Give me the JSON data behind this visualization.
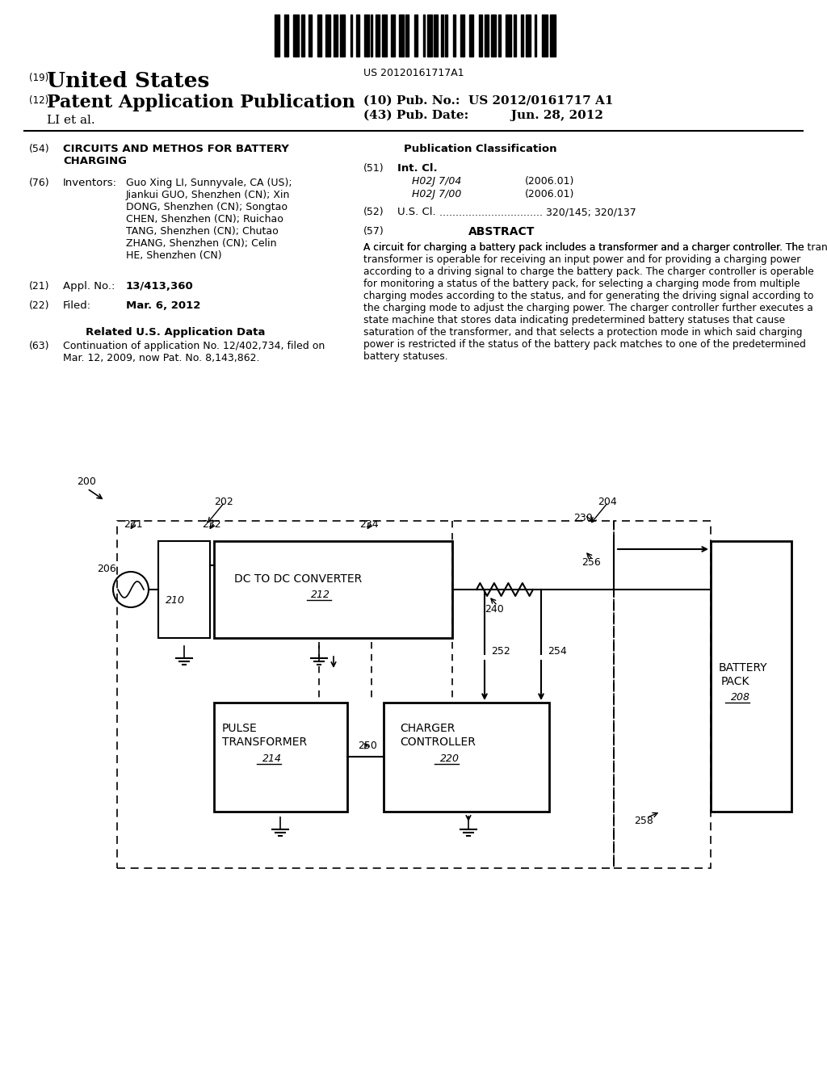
{
  "background_color": "#ffffff",
  "barcode_text": "US 20120161717A1",
  "header_19": "(19)",
  "header_us": "United States",
  "header_12": "(12)",
  "header_pat": "Patent Application Publication",
  "header_li": "LI et al.",
  "header_10": "(10) Pub. No.:  US 2012/0161717 A1",
  "header_43": "(43) Pub. Date:          Jun. 28, 2012",
  "field_54_label": "(54)",
  "field_54_title": "CIRCUITS AND METHOS FOR BATTERY\nCHARGING",
  "field_76_label": "(76)",
  "field_76_title": "Inventors:",
  "field_76_text": "Guo Xing LI, Sunnyvale, CA (US);\nJiankui GUO, Shenzhen (CN); Xin\nDONG, Shenzhen (CN); Songtao\nCHEN, Shenzhen (CN); Ruichao\nTANG, Shenzhen (CN); Chutao\nZHANG, Shenzhen (CN); Celin\nHE, Shenzhen (CN)",
  "field_21_label": "(21)",
  "field_21_title": "Appl. No.:",
  "field_21_text": "13/413,360",
  "field_22_label": "(22)",
  "field_22_title": "Filed:",
  "field_22_text": "Mar. 6, 2012",
  "related_title": "Related U.S. Application Data",
  "field_63_label": "(63)",
  "field_63_text": "Continuation of application No. 12/402,734, filed on\nMar. 12, 2009, now Pat. No. 8,143,862.",
  "pub_class_title": "Publication Classification",
  "field_51_label": "(51)",
  "field_51_title": "Int. Cl.",
  "field_51_class1": "H02J 7/04",
  "field_51_year1": "(2006.01)",
  "field_51_class2": "H02J 7/00",
  "field_51_year2": "(2006.01)",
  "field_52_label": "(52)",
  "field_52_title": "U.S. Cl.",
  "field_52_text": "320/145; 320/137",
  "field_57_label": "(57)",
  "field_57_title": "ABSTRACT",
  "abstract_text": "A circuit for charging a battery pack includes a transformer and a charger controller. The transformer is operable for receiving an input power and for providing a charging power according to a driving signal to charge the battery pack. The charger controller is operable for monitoring a status of the battery pack, for selecting a charging mode from multiple charging modes according to the status, and for generating the driving signal according to the charging mode to adjust the charging power. The charger controller further executes a state machine that stores data indicating predetermined battery statuses that cause saturation of the transformer, and that selects a protection mode in which said charging power is restricted if the status of the battery pack matches to one of the predetermined battery statuses."
}
